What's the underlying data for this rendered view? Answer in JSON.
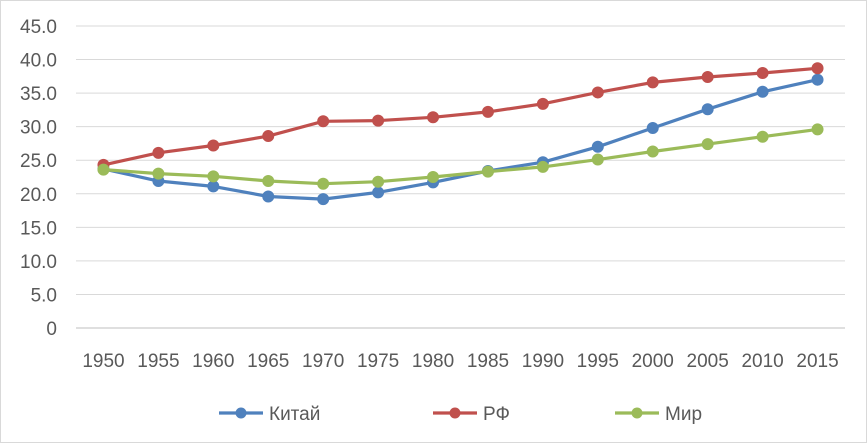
{
  "chart_data": {
    "type": "line",
    "x": [
      "1950",
      "1955",
      "1960",
      "1965",
      "1970",
      "1975",
      "1980",
      "1985",
      "1990",
      "1995",
      "2000",
      "2005",
      "2010",
      "2015"
    ],
    "y_ticks": [
      "0",
      "5.0",
      "10.0",
      "15.0",
      "20.0",
      "25.0",
      "30.0",
      "35.0",
      "40.0",
      "45.0"
    ],
    "ylim": [
      0,
      45
    ],
    "grid": true,
    "legend_position": "bottom",
    "series": [
      {
        "name": "Китай",
        "color": "#4f81bd",
        "values": [
          23.7,
          21.9,
          21.1,
          19.6,
          19.2,
          20.2,
          21.7,
          23.4,
          24.7,
          27.0,
          29.8,
          32.6,
          35.2,
          37.0
        ]
      },
      {
        "name": "РФ",
        "color": "#c0504d",
        "values": [
          24.3,
          26.1,
          27.2,
          28.6,
          30.8,
          30.9,
          31.4,
          32.2,
          33.4,
          35.1,
          36.6,
          37.4,
          38.0,
          38.7
        ]
      },
      {
        "name": "Мир",
        "color": "#9bbb59",
        "values": [
          23.6,
          23.0,
          22.6,
          21.9,
          21.5,
          21.8,
          22.5,
          23.3,
          24.0,
          25.1,
          26.3,
          27.4,
          28.5,
          29.6
        ]
      }
    ]
  }
}
